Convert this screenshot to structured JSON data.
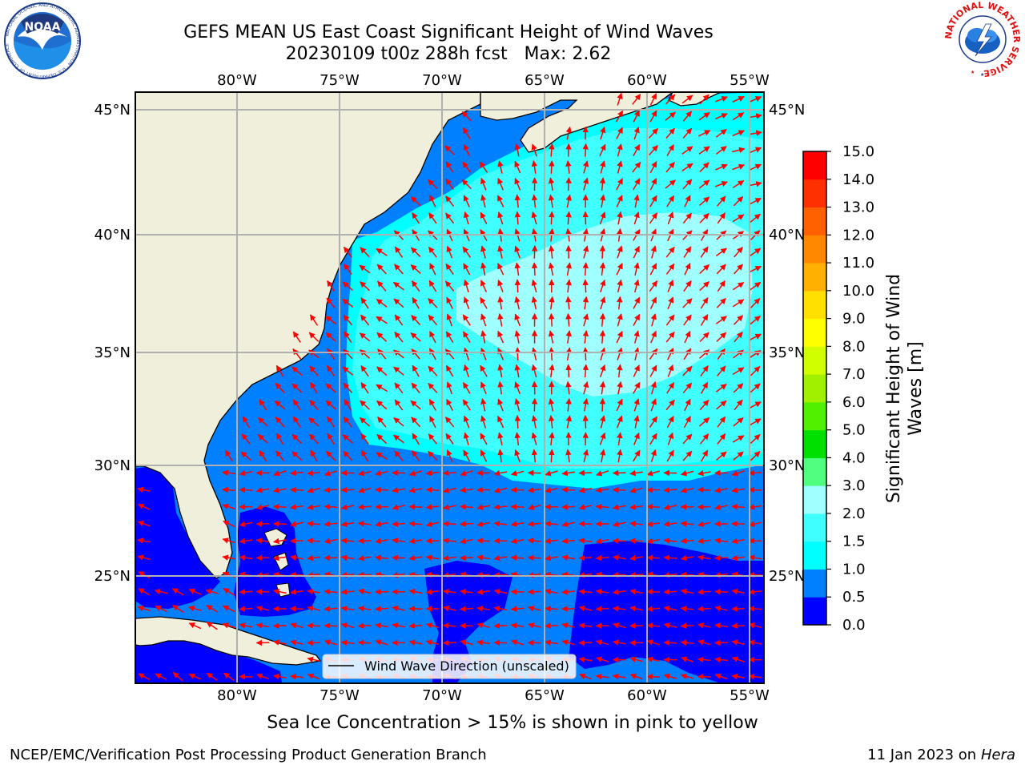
{
  "title": {
    "line1": "GEFS MEAN US East Coast Significant Height of Wind Waves",
    "line2": "20230109 t00z 288h fcst   Max: 2.62"
  },
  "caption": "Sea Ice Concentration > 15% is shown in pink to yellow",
  "footer": {
    "left": "NCEP/EMC/Verification Post Processing Product Generation Branch",
    "right_prefix": "11 Jan 2023 on ",
    "right_machine": "Hera"
  },
  "logos": {
    "noaa_text": "NOAA",
    "noaa_ring_text": "NATIONAL OCEANIC AND ATMOSPHERIC ADMINISTRATION · U.S. DEPARTMENT OF COMMERCE",
    "nws_ring_text": "NATIONAL WEATHER SERVICE"
  },
  "map": {
    "lon_ticks": [
      "80°W",
      "75°W",
      "70°W",
      "65°W",
      "60°W",
      "55°W"
    ],
    "lat_ticks_left": [
      "45°N",
      "40°N",
      "35°N",
      "30°N",
      "25°N"
    ],
    "lat_ticks_right": [
      "45°N",
      "40°N",
      "35°N",
      "30°N",
      "25°N"
    ],
    "lon_values": [
      -80,
      -75,
      -70,
      -65,
      -60,
      -55
    ],
    "lat_values": [
      45,
      40,
      35,
      30,
      25
    ],
    "legend_label": "Wind Wave Direction (unscaled)",
    "colors": {
      "land": "#efefdc",
      "arrow": "#ff0000",
      "grid": "#b0b0b0"
    }
  },
  "colorbar": {
    "label": "Significant Height of Wind Waves [m]",
    "label_line1": "Significant Height of Wind",
    "label_line2": "Waves [m]",
    "ticks": [
      "15.0",
      "14.0",
      "13.0",
      "12.0",
      "11.0",
      "10.0",
      "9.0",
      "8.0",
      "7.0",
      "6.0",
      "5.0",
      "4.0",
      "3.0",
      "2.0",
      "1.5",
      "1.0",
      "0.5",
      "0.0"
    ],
    "levels": [
      0.0,
      0.5,
      1.0,
      1.5,
      2.0,
      3.0,
      4.0,
      5.0,
      6.0,
      7.0,
      8.0,
      9.0,
      10.0,
      11.0,
      12.0,
      13.0,
      14.0,
      15.0
    ],
    "colors": [
      "#0000ff",
      "#0080ff",
      "#00ffff",
      "#40ffff",
      "#a0ffff",
      "#50ff80",
      "#00e000",
      "#50f000",
      "#a0f000",
      "#d0ff00",
      "#ffff00",
      "#ffe000",
      "#ffb000",
      "#ff8800",
      "#ff6000",
      "#ff3000",
      "#ff0000"
    ]
  }
}
